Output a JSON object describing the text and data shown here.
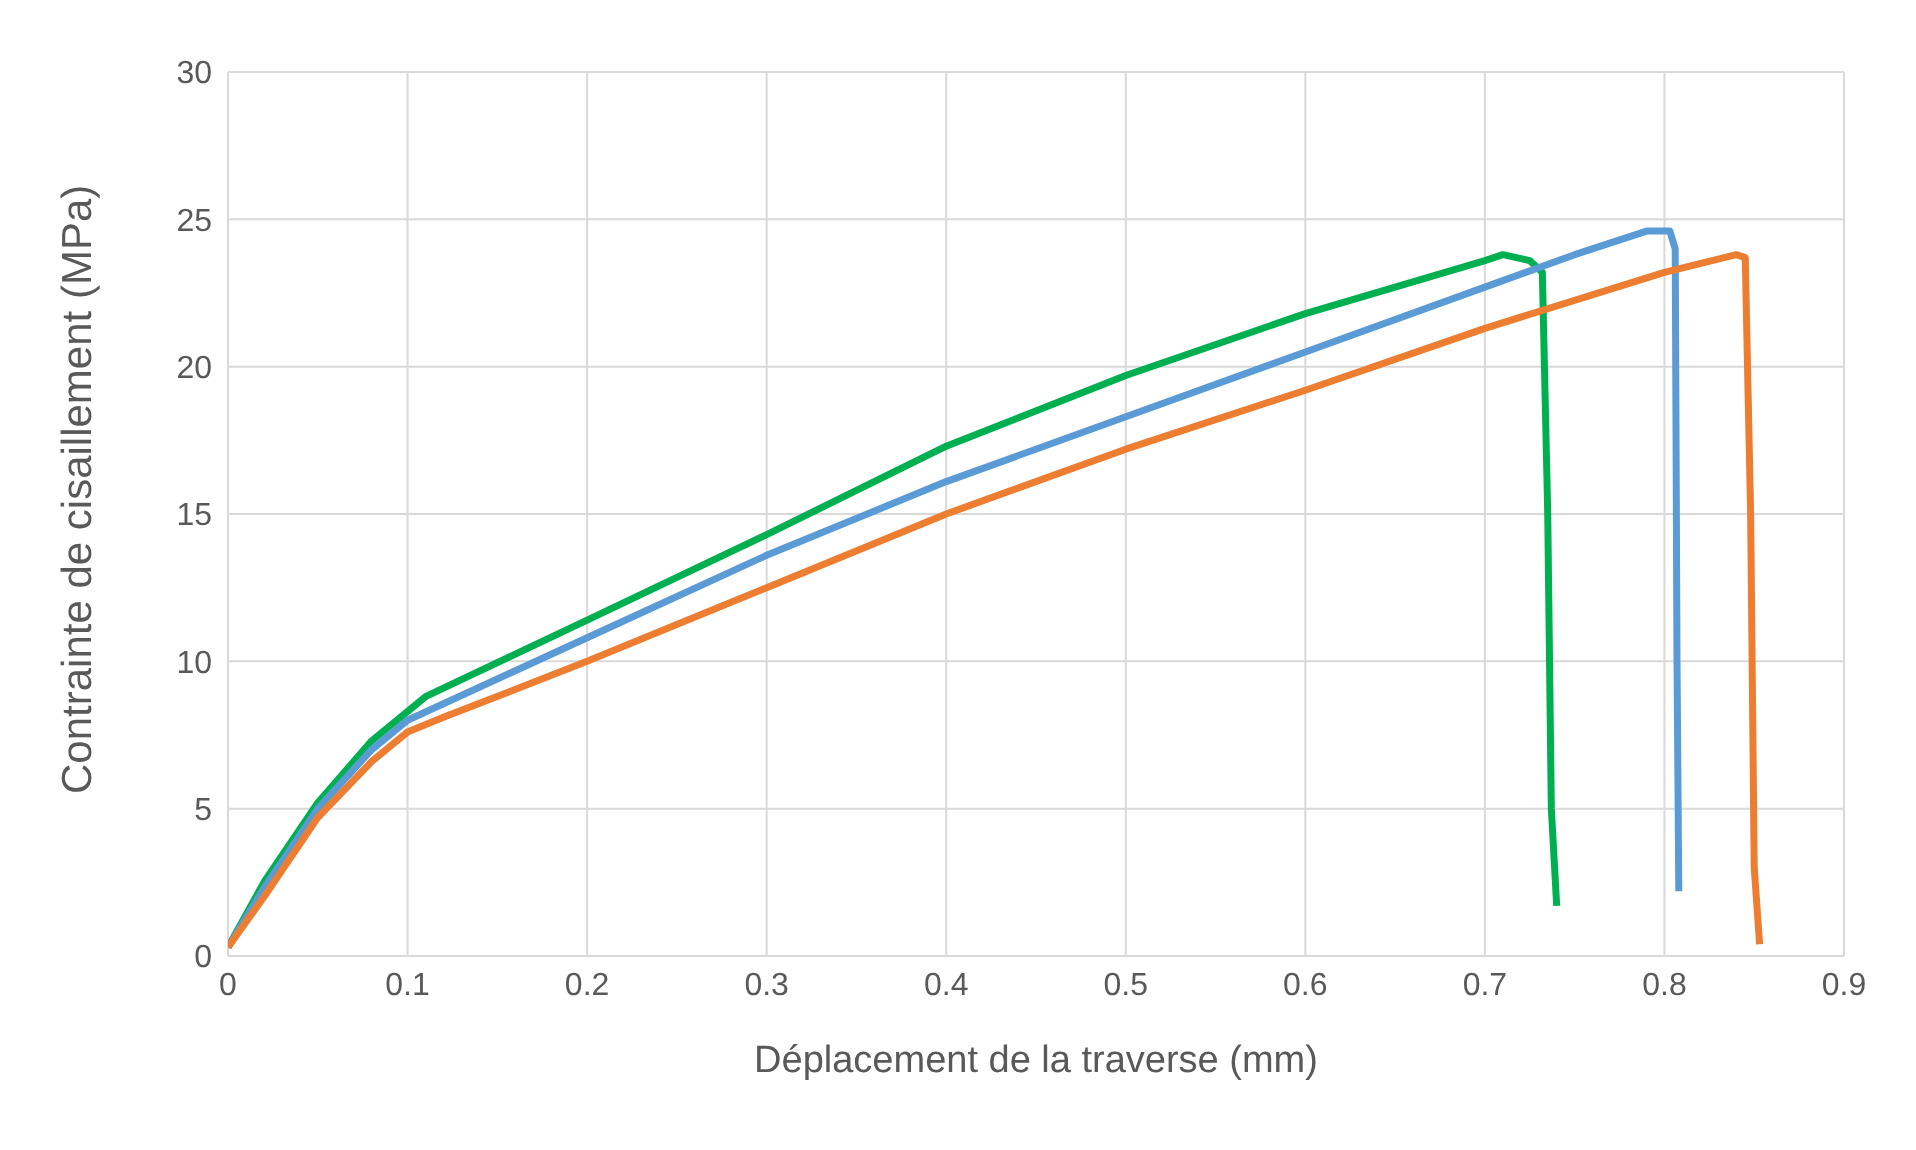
{
  "chart_data": {
    "type": "line",
    "xlabel": "Déplacement de la traverse (mm)",
    "ylabel": "Contrainte de cisaillement (MPa)",
    "xlim": [
      0,
      0.9
    ],
    "xticks": [
      0,
      0.1,
      0.2,
      0.3,
      0.4,
      0.5,
      0.6,
      0.7,
      0.8,
      0.9
    ],
    "ylim": [
      0,
      30
    ],
    "yticks": [
      0,
      5,
      10,
      15,
      20,
      25,
      30
    ],
    "grid": true,
    "marker": "none",
    "line_style": "solid",
    "series": [
      {
        "color": "#00b050",
        "x": [
          0,
          0.02,
          0.05,
          0.08,
          0.1,
          0.11,
          0.2,
          0.3,
          0.4,
          0.5,
          0.6,
          0.7,
          0.71,
          0.725,
          0.732,
          0.735,
          0.737,
          0.74
        ],
        "values": [
          0.3,
          2.5,
          5.2,
          7.3,
          8.3,
          8.8,
          11.4,
          14.3,
          17.3,
          19.7,
          21.8,
          23.6,
          23.8,
          23.6,
          23.2,
          15,
          5,
          1.7
        ]
      },
      {
        "color": "#5b9bd5",
        "x": [
          0,
          0.02,
          0.05,
          0.08,
          0.1,
          0.2,
          0.3,
          0.4,
          0.5,
          0.6,
          0.7,
          0.75,
          0.79,
          0.803,
          0.806,
          0.807,
          0.808
        ],
        "values": [
          0.3,
          2.3,
          5,
          7,
          8,
          10.8,
          13.6,
          16.1,
          18.3,
          20.5,
          22.7,
          23.8,
          24.6,
          24.6,
          24,
          10,
          2.2
        ]
      },
      {
        "color": "#ed7d31",
        "x": [
          0,
          0.02,
          0.05,
          0.08,
          0.1,
          0.12,
          0.2,
          0.3,
          0.4,
          0.5,
          0.6,
          0.7,
          0.8,
          0.84,
          0.845,
          0.848,
          0.85,
          0.853
        ],
        "values": [
          0.3,
          2,
          4.7,
          6.6,
          7.6,
          8.1,
          10,
          12.5,
          15,
          17.2,
          19.2,
          21.3,
          23.2,
          23.8,
          23.7,
          15,
          3,
          0.4
        ]
      }
    ]
  }
}
